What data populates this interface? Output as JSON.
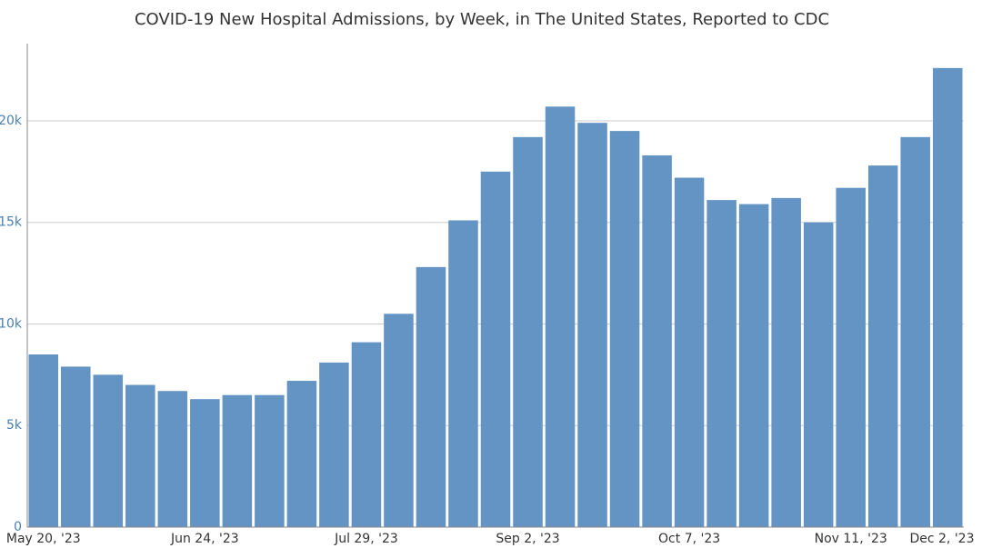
{
  "chart_data": {
    "type": "bar",
    "title": "COVID-19 New Hospital Admissions, by Week, in The United States, Reported to CDC",
    "categories": [
      "May 20, '23",
      null,
      null,
      null,
      null,
      "Jun 24, '23",
      null,
      null,
      null,
      null,
      "Jul 29, '23",
      null,
      null,
      null,
      null,
      "Sep 2, '23",
      null,
      null,
      null,
      null,
      "Oct 7, '23",
      null,
      null,
      null,
      null,
      "Nov 11, '23",
      null,
      null,
      "Dec 2, '23"
    ],
    "values": [
      8500,
      7900,
      7500,
      7000,
      6700,
      6300,
      6500,
      6500,
      7200,
      8100,
      9100,
      10500,
      12800,
      15100,
      17500,
      19200,
      20700,
      19900,
      19500,
      18300,
      17200,
      16100,
      15900,
      16200,
      15000,
      16700,
      17800,
      19200,
      22600
    ],
    "color": "#6394c3",
    "ylim": [
      0,
      23800
    ],
    "yticks": [
      0,
      {
        "value": 5000,
        "label": "5k"
      },
      {
        "value": 10000,
        "label": "10k"
      },
      {
        "value": 15000,
        "label": "15k"
      },
      {
        "value": 20000,
        "label": "20k"
      }
    ],
    "grid": true
  }
}
